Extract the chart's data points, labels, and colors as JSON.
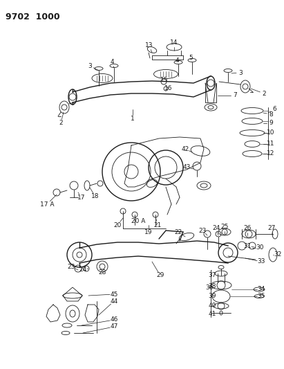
{
  "title": "9702 1000",
  "bg_color": "#ffffff",
  "line_color": "#1a1a1a",
  "fig_width": 4.11,
  "fig_height": 5.33,
  "dpi": 100
}
